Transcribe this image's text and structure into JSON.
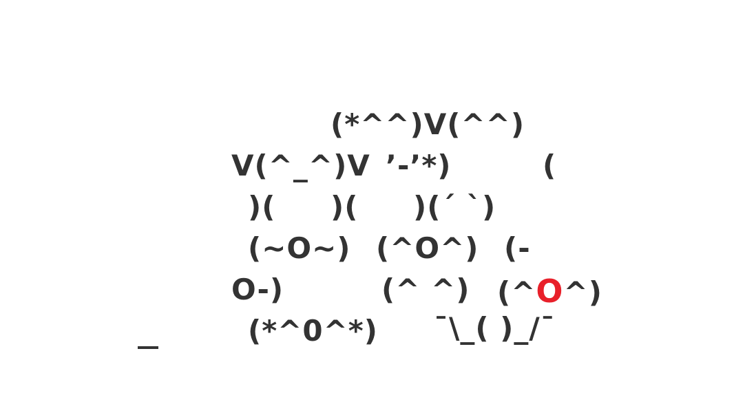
{
  "colors": {
    "text": "#333333",
    "accent": "#e8202a",
    "background": "#ffffff"
  },
  "lines": {
    "row1": "(*^^)V(^^)",
    "row2a": "V(^_^)V",
    "row2b": "’-’*)",
    "row2c": "(",
    "row3a": ")(",
    "row3b": ")(",
    "row3c": ")(´ `)",
    "row4a": "(~O~)",
    "row4b": "(^O^)",
    "row4c": "(-",
    "row5a": "O-)",
    "row5b": "(^ ^)",
    "row5c_pre": "(^",
    "row5c_accent": "O",
    "row5c_post": "^)",
    "row6a": "(*^0^*)",
    "row6b": "¯\\_( )_/¯",
    "stray": "_"
  }
}
